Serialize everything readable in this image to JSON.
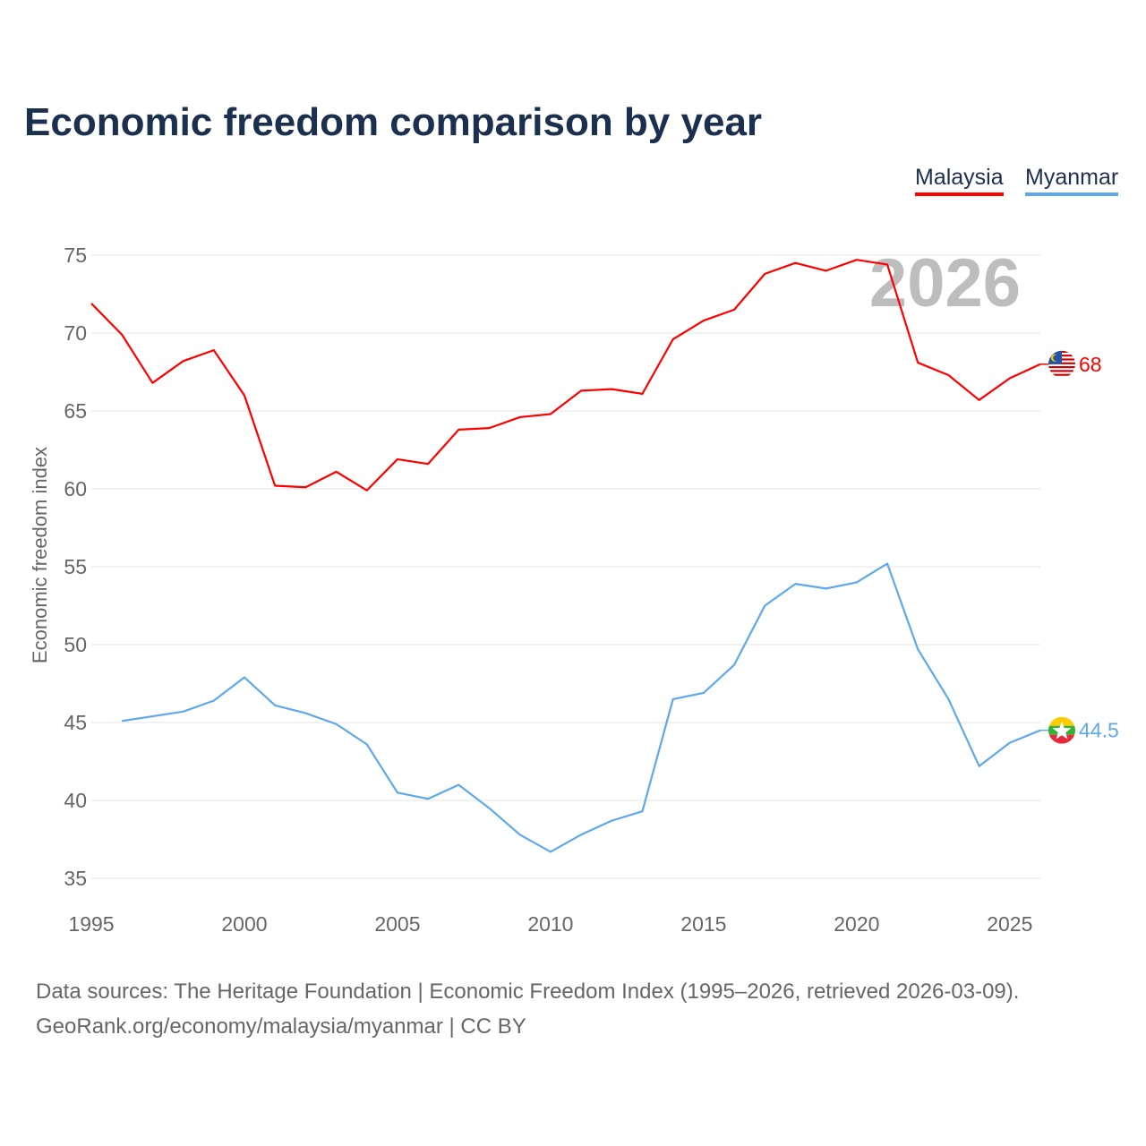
{
  "title": "Economic freedom comparison by year",
  "legend": [
    {
      "label": "Malaysia",
      "color": "#ff0000"
    },
    {
      "label": "Myanmar",
      "color": "#5ea8ec"
    }
  ],
  "year_watermark": "2026",
  "source_line1": "Data sources: The Heritage Foundation | Economic Freedom Index (1995–2026, retrieved 2026-03-09).",
  "source_line2": "GeoRank.org/economy/malaysia/myanmar | CC BY",
  "chart_data": {
    "type": "line",
    "title": "Economic freedom comparison by year",
    "xlabel": "",
    "ylabel": "Economic freedom index",
    "xlim": [
      1995,
      2026
    ],
    "ylim": [
      35,
      75
    ],
    "xticks": [
      1995,
      2000,
      2005,
      2010,
      2015,
      2020,
      2025
    ],
    "yticks": [
      35,
      40,
      45,
      50,
      55,
      60,
      65,
      70,
      75
    ],
    "grid": true,
    "legend_position": "top-right",
    "series": [
      {
        "name": "Malaysia",
        "color": "#ff0000",
        "end_label": "68",
        "start": 1995,
        "values": [
          71.9,
          69.9,
          66.8,
          68.2,
          68.9,
          66.0,
          60.2,
          60.1,
          61.1,
          59.9,
          61.9,
          61.6,
          63.8,
          63.9,
          64.6,
          64.8,
          66.3,
          66.4,
          66.1,
          69.6,
          70.8,
          71.5,
          73.8,
          74.5,
          74.0,
          74.7,
          74.4,
          68.1,
          67.3,
          65.7,
          67.1,
          68.0
        ]
      },
      {
        "name": "Myanmar",
        "color": "#5ea8ec",
        "end_label": "44.5",
        "start": 1996,
        "values": [
          45.1,
          45.4,
          45.7,
          46.4,
          47.9,
          46.1,
          45.6,
          44.9,
          43.6,
          40.5,
          40.1,
          41.0,
          39.5,
          37.8,
          36.7,
          37.8,
          38.7,
          39.3,
          46.5,
          46.9,
          48.7,
          52.5,
          53.9,
          53.6,
          54.0,
          55.2,
          49.7,
          46.5,
          42.2,
          43.7,
          44.5
        ]
      }
    ]
  }
}
